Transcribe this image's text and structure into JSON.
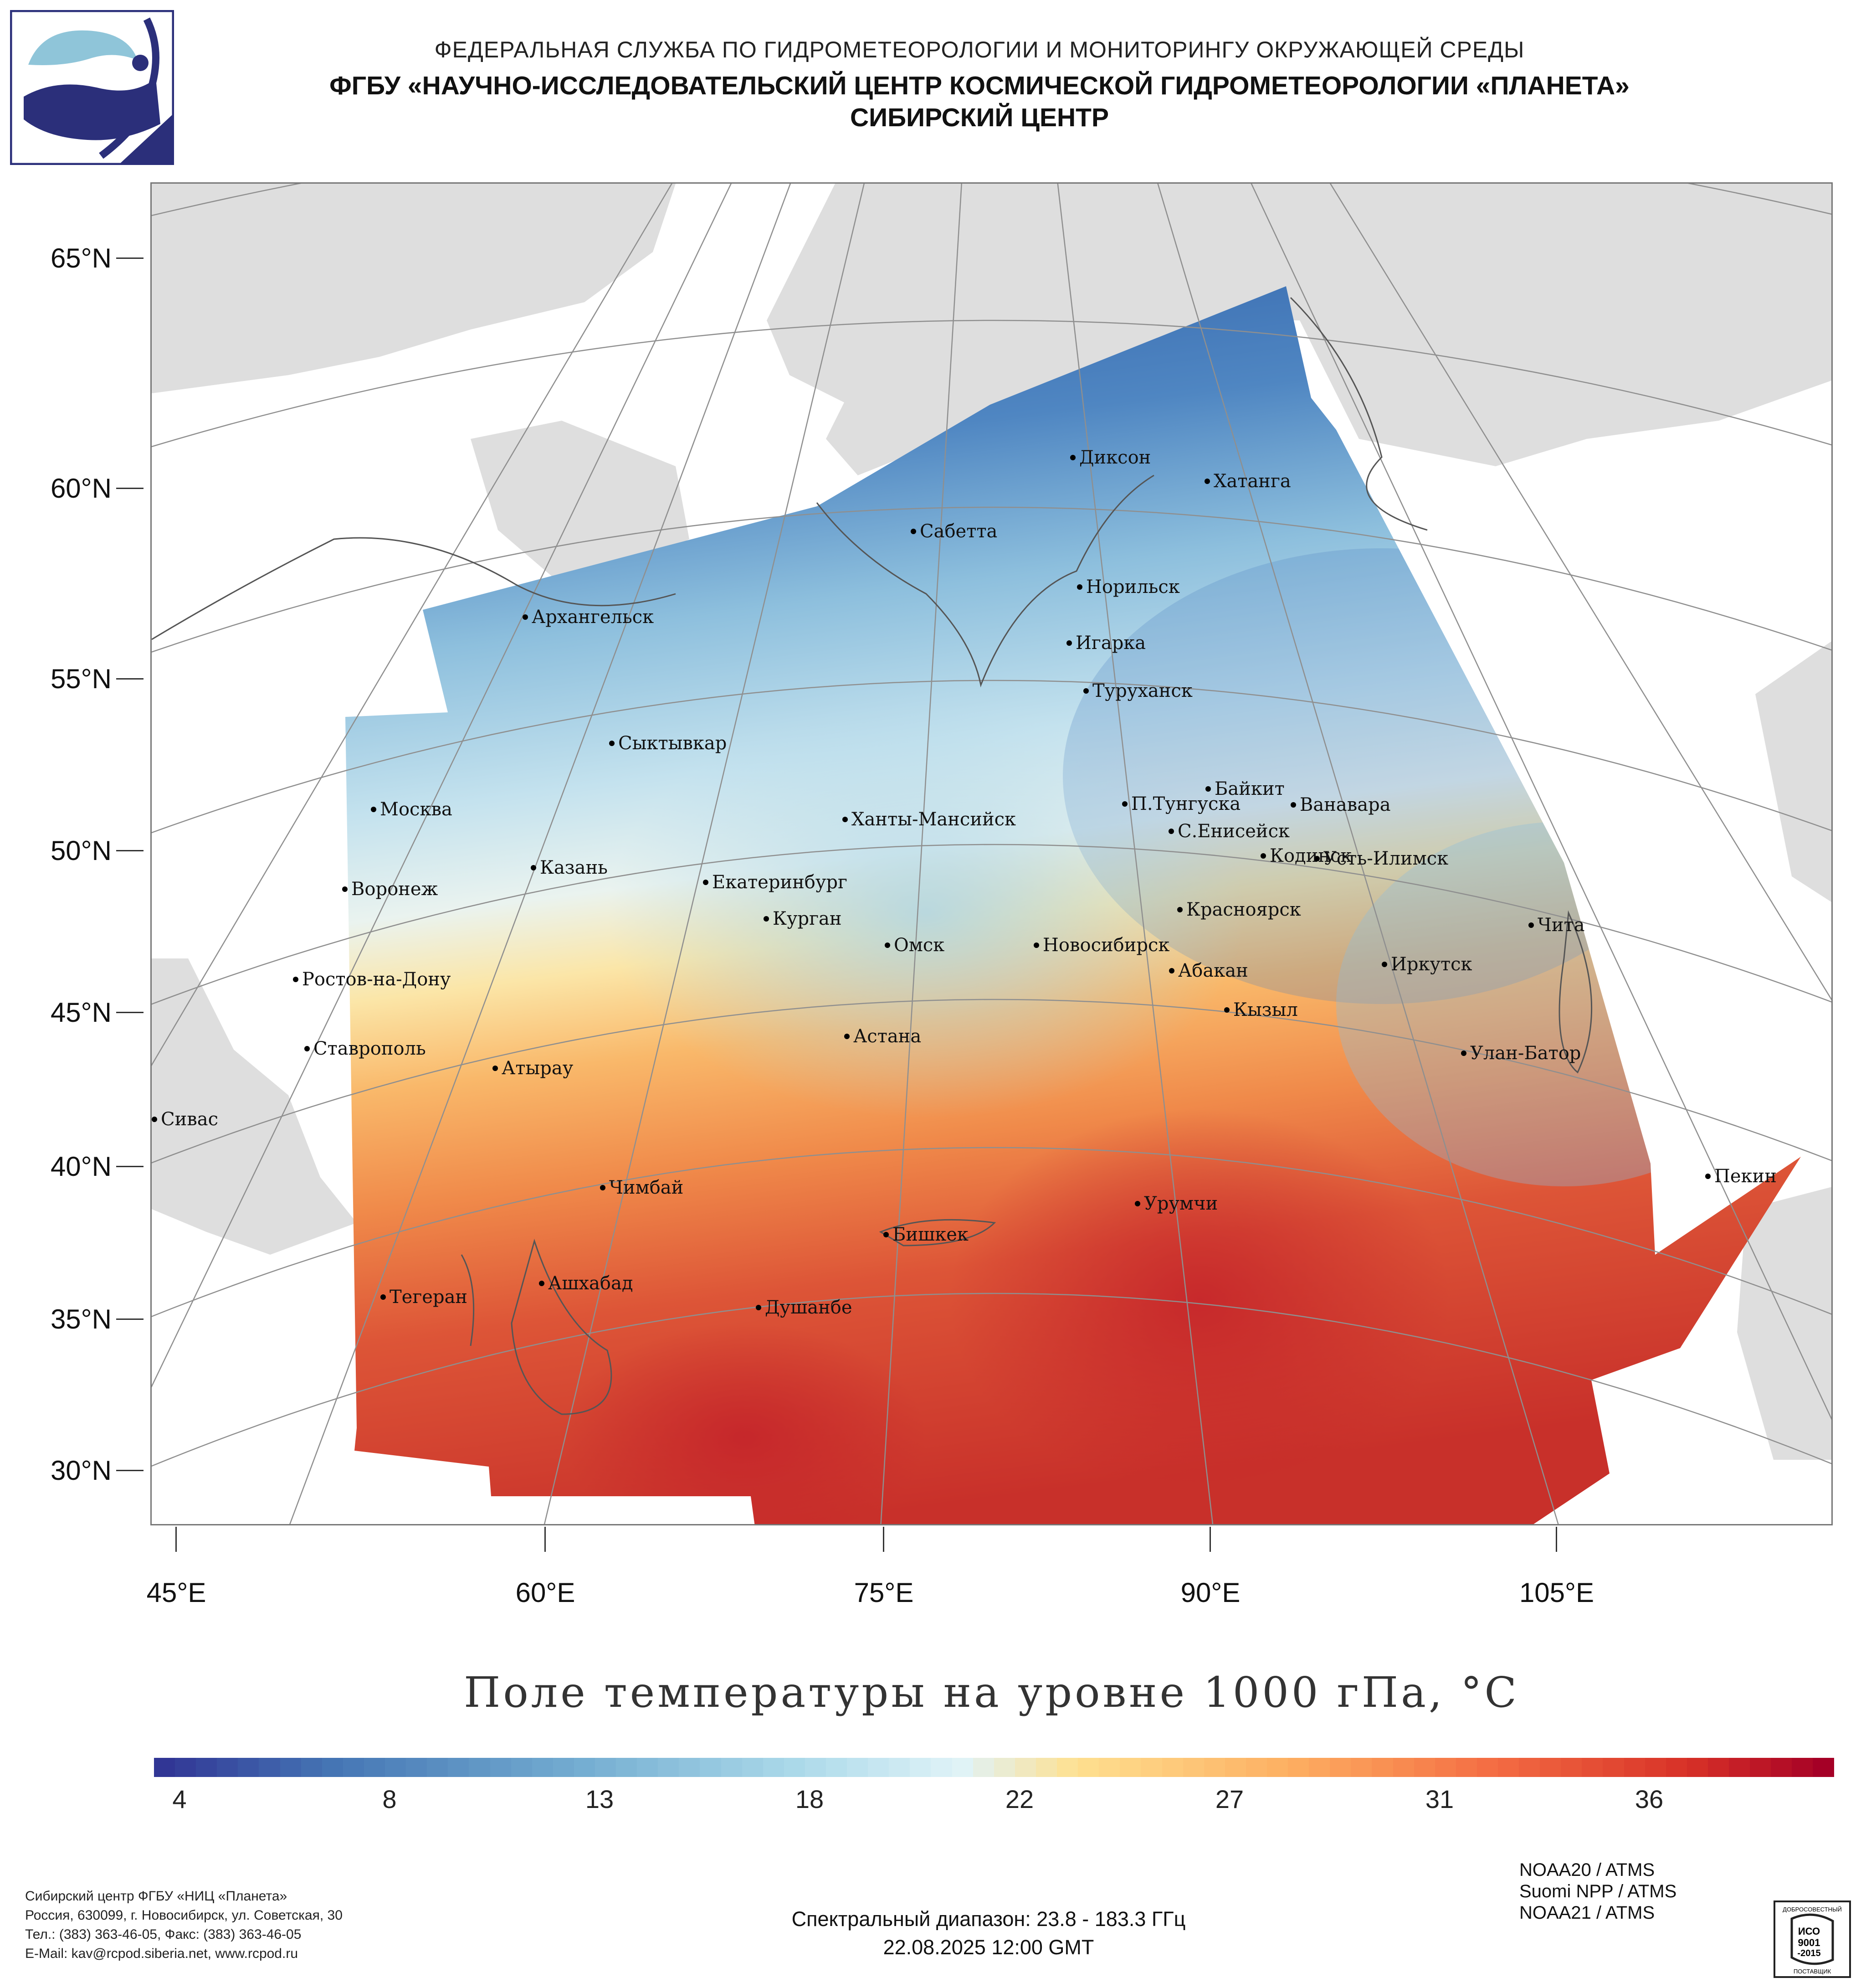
{
  "header": {
    "line1": "ФЕДЕРАЛЬНАЯ СЛУЖБА ПО ГИДРОМЕТЕОРОЛОГИИ И МОНИТОРИНГУ ОКРУЖАЮЩЕЙ СРЕДЫ",
    "line2": "ФГБУ «НАУЧНО-ИССЛЕДОВАТЕЛЬСКИЙ ЦЕНТР КОСМИЧЕСКОЙ ГИДРОМЕТЕОРОЛОГИИ «ПЛАНЕТА»",
    "line3": "СИБИРСКИЙ ЦЕНТР"
  },
  "colors": {
    "cold": "#3a67b0",
    "cool": "#9fcbe2",
    "neutral": "#eef3e6",
    "warm": "#f7b565",
    "hot": "#d43a2a",
    "land": "#dedede",
    "grid": "#9a9a9a"
  },
  "map": {
    "lat_labels": [
      "65°N",
      "60°N",
      "55°N",
      "50°N",
      "45°N",
      "40°N",
      "35°N",
      "30°N"
    ],
    "lon_labels": [
      "45°E",
      "60°E",
      "75°E",
      "90°E",
      "105°E"
    ],
    "cities": [
      {
        "name": "Диксон"
      },
      {
        "name": "Хатанга"
      },
      {
        "name": "Сабетта"
      },
      {
        "name": "Норильск"
      },
      {
        "name": "Архангельск"
      },
      {
        "name": "Игарка"
      },
      {
        "name": "Туруханск"
      },
      {
        "name": "Сыктывкар"
      },
      {
        "name": "Байкит"
      },
      {
        "name": "П.Тунгуска"
      },
      {
        "name": "Ванавара"
      },
      {
        "name": "Москва"
      },
      {
        "name": "Ханты-Мансийск"
      },
      {
        "name": "С.Енисейск"
      },
      {
        "name": "Кодинск"
      },
      {
        "name": "Усть-Илимск"
      },
      {
        "name": "Казань"
      },
      {
        "name": "Екатеринбург"
      },
      {
        "name": "Воронеж"
      },
      {
        "name": "Красноярск"
      },
      {
        "name": "Курган"
      },
      {
        "name": "Чита"
      },
      {
        "name": "Омск"
      },
      {
        "name": "Новосибирск"
      },
      {
        "name": "Иркутск"
      },
      {
        "name": "Абакан"
      },
      {
        "name": "Ростов-на-Дону"
      },
      {
        "name": "Кызыл"
      },
      {
        "name": "Астана"
      },
      {
        "name": "Ставрополь"
      },
      {
        "name": "Улан-Батор"
      },
      {
        "name": "Атырау"
      },
      {
        "name": "Сивас"
      },
      {
        "name": "Пекин"
      },
      {
        "name": "Чимбай"
      },
      {
        "name": "Урумчи"
      },
      {
        "name": "Бишкек"
      },
      {
        "name": "Ашхабад"
      },
      {
        "name": "Тегеран"
      },
      {
        "name": "Душанбе"
      }
    ]
  },
  "colorbar": {
    "title": "Поле температуры на уровне 1000 гПа, °C",
    "labels": [
      "4",
      "8",
      "13",
      "18",
      "22",
      "27",
      "31",
      "36"
    ],
    "range": [
      2,
      42
    ],
    "scale": "RdYlBu reversed, discrete"
  },
  "footer": {
    "org_lines": [
      "Сибирский центр ФГБУ «НИЦ «Планета»",
      "Россия, 630099, г. Новосибирск, ул. Советская, 30",
      "Тел.: (383) 363-46-05, Факс: (383) 363-46-05",
      "E-Mail: kav@rcpod.siberia.net, www.rcpod.ru"
    ],
    "spectral": "Спектральный диапазон: 23.8 - 183.3 ГГц",
    "datetime": "22.08.2025 12:00 GMT",
    "satellites": [
      "NOAA20 / ATMS",
      "Suomi NPP / ATMS",
      "NOAA21 / ATMS"
    ],
    "cert": {
      "top": "ДОБРОСОВЕСТНЫЙ",
      "line1": "ИСО",
      "line2": "9001",
      "line3": "-2015",
      "bottom": "ПОСТАВЩИК"
    }
  }
}
